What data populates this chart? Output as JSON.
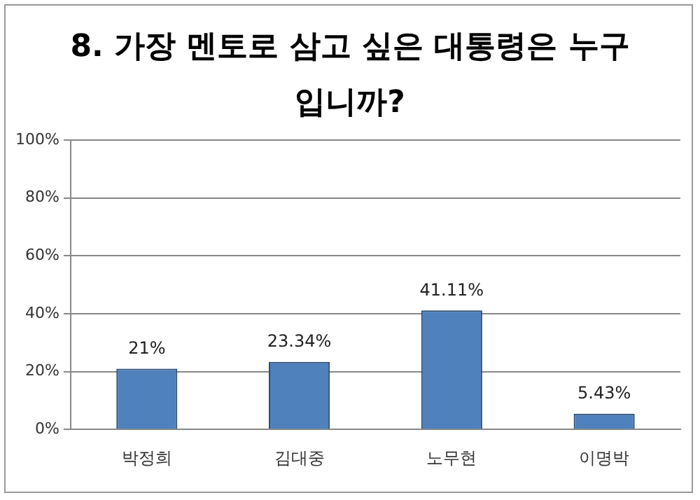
{
  "chart_data": {
    "type": "bar",
    "title": "8. 가장 멘토로 삼고 싶은 대통령은 누구입니까?",
    "categories": [
      "박정희",
      "김대중",
      "노무현",
      "이명박"
    ],
    "values": [
      21,
      23.34,
      41.11,
      5.43
    ],
    "color": "#4f81bd",
    "value_labels": [
      "21%",
      "23.34%",
      "41.11%",
      "5.43%"
    ],
    "ylim": [
      0,
      100
    ],
    "yticks": [
      {
        "value": 0,
        "label": "0%"
      },
      {
        "value": 20,
        "label": "20%"
      },
      {
        "value": 40,
        "label": "40%"
      },
      {
        "value": 60,
        "label": "60%"
      },
      {
        "value": 80,
        "label": "80%"
      },
      {
        "value": 100,
        "label": "100%"
      }
    ],
    "grid": "y",
    "legend": false
  }
}
